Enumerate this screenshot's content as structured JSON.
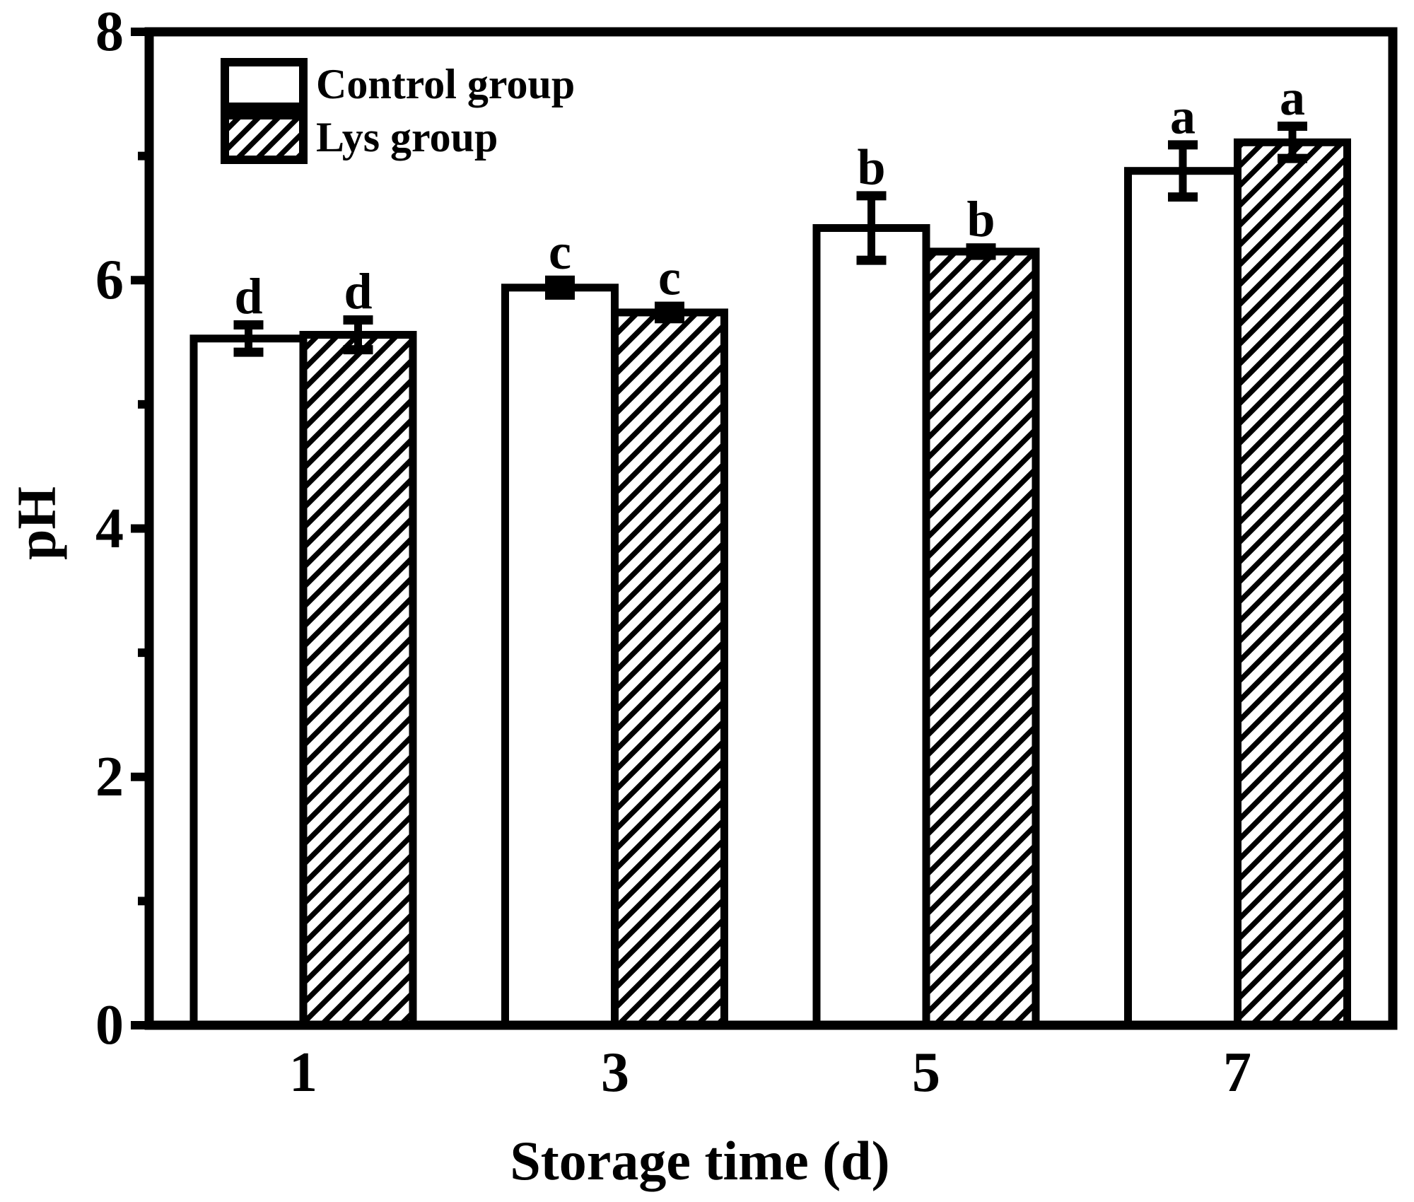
{
  "figure": {
    "background": "#ffffff",
    "ink": "#000000"
  },
  "chart_data": {
    "type": "bar",
    "title": "",
    "xlabel": "Storage time (d)",
    "ylabel": "pH",
    "categories": [
      "1",
      "3",
      "5",
      "7"
    ],
    "ylim": [
      0,
      8
    ],
    "yticks": [
      0,
      2,
      4,
      6,
      8
    ],
    "ytick_labels": [
      "0",
      "2",
      "4",
      "6",
      "8"
    ],
    "minor_yticks": [
      1,
      3,
      5,
      7
    ],
    "grid": false,
    "legend_position": "top-left-inside",
    "series": [
      {
        "name": "Control group",
        "pattern": "solid-white",
        "values": [
          5.53,
          5.94,
          6.42,
          6.88
        ],
        "errors": [
          0.11,
          0.06,
          0.26,
          0.21
        ],
        "letters": [
          "d",
          "c",
          "b",
          "a"
        ]
      },
      {
        "name": "Lys group",
        "pattern": "diagonal-hatch",
        "values": [
          5.56,
          5.74,
          6.23,
          7.11
        ],
        "errors": [
          0.12,
          0.05,
          0.03,
          0.13
        ],
        "letters": [
          "d",
          "c",
          "b",
          "a"
        ]
      }
    ]
  }
}
